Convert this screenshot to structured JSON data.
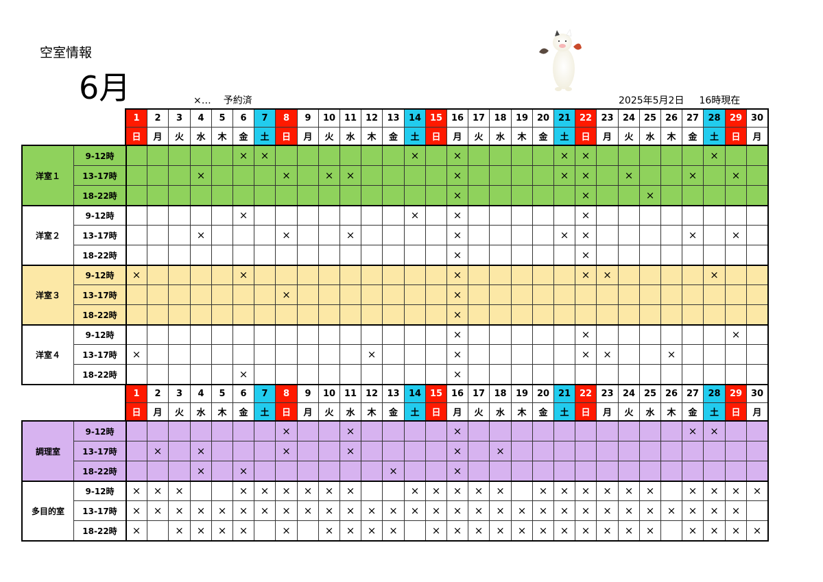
{
  "header": {
    "title": "空室情報",
    "month": "6月",
    "legend_mark": "×…",
    "legend_text": "予約済",
    "updated_date": "2025年5月2日",
    "updated_time": "16時現在"
  },
  "mark": "×",
  "colors": {
    "sunday": "#ff1a00",
    "saturday": "#22ccee",
    "green": "#8fd25c",
    "yellow": "#fce8a6",
    "purple": "#d7b3f0",
    "white": "#ffffff"
  },
  "days": [
    "1",
    "2",
    "3",
    "4",
    "5",
    "6",
    "7",
    "8",
    "9",
    "10",
    "11",
    "12",
    "13",
    "14",
    "15",
    "16",
    "17",
    "18",
    "19",
    "20",
    "21",
    "22",
    "23",
    "24",
    "25",
    "26",
    "27",
    "28",
    "29",
    "30"
  ],
  "weekdays": [
    "日",
    "月",
    "火",
    "水",
    "木",
    "金",
    "土",
    "日",
    "月",
    "火",
    "水",
    "木",
    "金",
    "土",
    "日",
    "月",
    "火",
    "水",
    "木",
    "金",
    "土",
    "日",
    "月",
    "火",
    "水",
    "木",
    "金",
    "土",
    "日",
    "月"
  ],
  "rooms": [
    {
      "name": "洋室１",
      "color": "green",
      "slots": [
        {
          "label": "9-12時",
          "booked": [
            6,
            7,
            14,
            16,
            21,
            22,
            28
          ]
        },
        {
          "label": "13-17時",
          "booked": [
            4,
            8,
            10,
            11,
            16,
            21,
            22,
            24,
            27,
            29
          ]
        },
        {
          "label": "18-22時",
          "booked": [
            16,
            22,
            25
          ]
        }
      ]
    },
    {
      "name": "洋室２",
      "color": "white",
      "slots": [
        {
          "label": "9-12時",
          "booked": [
            6,
            14,
            16,
            22
          ]
        },
        {
          "label": "13-17時",
          "booked": [
            4,
            8,
            11,
            16,
            21,
            22,
            27,
            29
          ]
        },
        {
          "label": "18-22時",
          "booked": [
            16,
            22
          ]
        }
      ]
    },
    {
      "name": "洋室３",
      "color": "yellow",
      "slots": [
        {
          "label": "9-12時",
          "booked": [
            1,
            6,
            16,
            22,
            23,
            28
          ]
        },
        {
          "label": "13-17時",
          "booked": [
            8,
            16
          ]
        },
        {
          "label": "18-22時",
          "booked": [
            16
          ]
        }
      ]
    },
    {
      "name": "洋室４",
      "color": "white",
      "slots": [
        {
          "label": "9-12時",
          "booked": [
            16,
            22,
            29
          ]
        },
        {
          "label": "13-17時",
          "booked": [
            1,
            12,
            16,
            22,
            23,
            26
          ]
        },
        {
          "label": "18-22時",
          "booked": [
            6,
            16
          ]
        }
      ]
    },
    {
      "name": "調理室",
      "color": "purple",
      "slots": [
        {
          "label": "9-12時",
          "booked": [
            8,
            11,
            16,
            27,
            28
          ]
        },
        {
          "label": "13-17時",
          "booked": [
            2,
            4,
            8,
            11,
            16,
            18
          ]
        },
        {
          "label": "18-22時",
          "booked": [
            4,
            6,
            13,
            16
          ]
        }
      ]
    },
    {
      "name": "多目的室",
      "color": "white",
      "slots": [
        {
          "label": "9-12時",
          "booked": [
            1,
            2,
            3,
            6,
            7,
            8,
            9,
            10,
            11,
            14,
            15,
            16,
            17,
            18,
            20,
            21,
            22,
            23,
            24,
            25,
            27,
            28,
            29,
            30
          ]
        },
        {
          "label": "13-17時",
          "booked": [
            1,
            2,
            3,
            4,
            5,
            6,
            7,
            8,
            9,
            10,
            11,
            12,
            13,
            14,
            15,
            16,
            17,
            18,
            19,
            20,
            21,
            22,
            23,
            24,
            25,
            26,
            27,
            28,
            29
          ]
        },
        {
          "label": "18-22時",
          "booked": [
            1,
            3,
            4,
            5,
            6,
            8,
            10,
            11,
            12,
            13,
            15,
            16,
            17,
            18,
            19,
            20,
            21,
            22,
            23,
            24,
            25,
            27,
            28,
            29,
            30
          ]
        }
      ]
    }
  ]
}
